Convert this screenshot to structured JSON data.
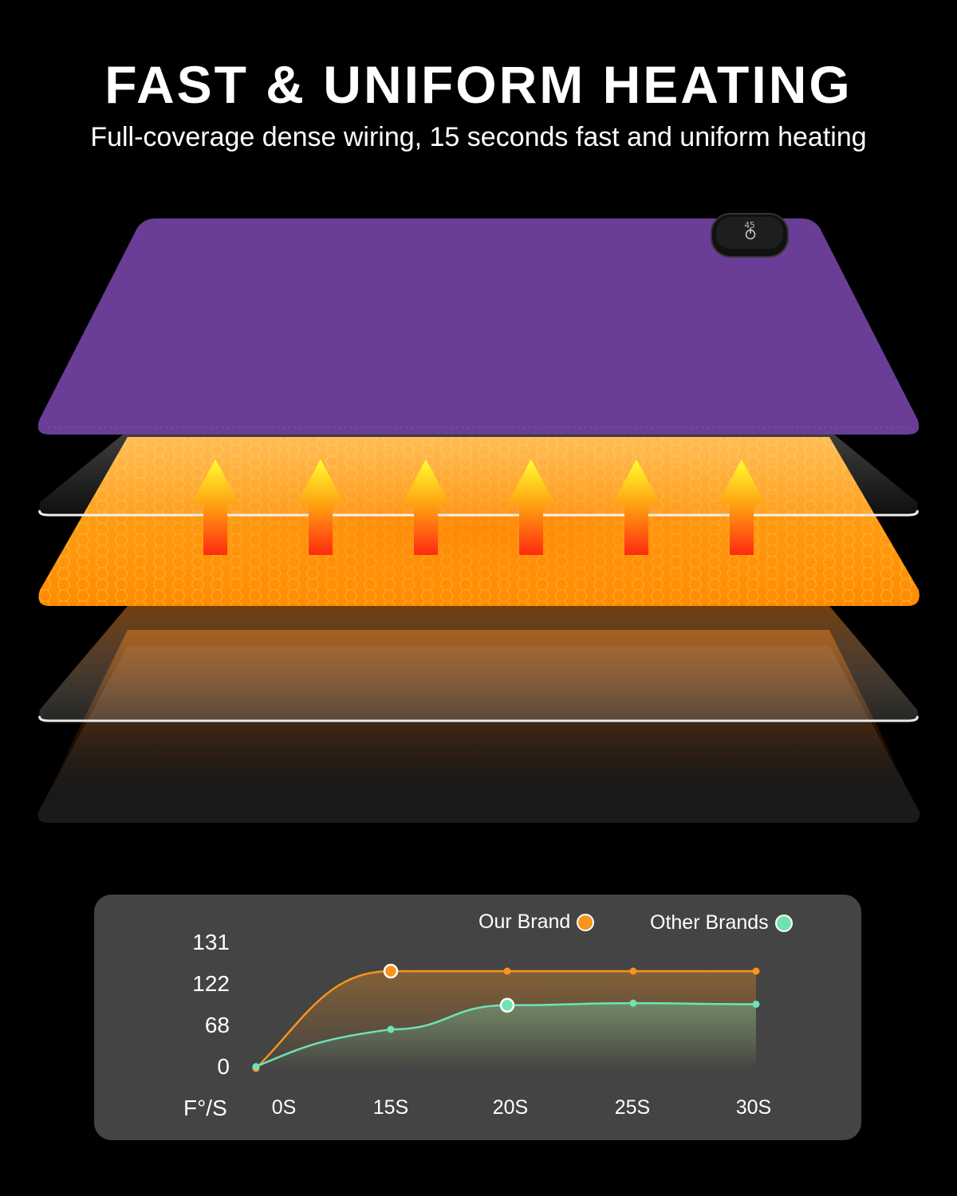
{
  "header": {
    "title": "FAST & UNIFORM HEATING",
    "subtitle": "Full-coverage dense wiring, 15 seconds fast and uniform heating"
  },
  "product": {
    "mat_color": "#6a3d96",
    "heat_color": "#ff9a10",
    "controller_display": "45",
    "arrow_count": 6
  },
  "chart_data": {
    "type": "line",
    "unit_label": "F°/S",
    "x": [
      "0S",
      "15S",
      "20S",
      "25S",
      "30S"
    ],
    "y_ticks": [
      "131",
      "122",
      "68",
      "0"
    ],
    "series": [
      {
        "name": "Our Brand",
        "color": "#f7941d",
        "values": [
          0,
          122,
          122,
          122,
          122
        ]
      },
      {
        "name": "Other Brands",
        "color": "#6fe3b4",
        "values": [
          3,
          64,
          89,
          91,
          90
        ]
      }
    ]
  }
}
